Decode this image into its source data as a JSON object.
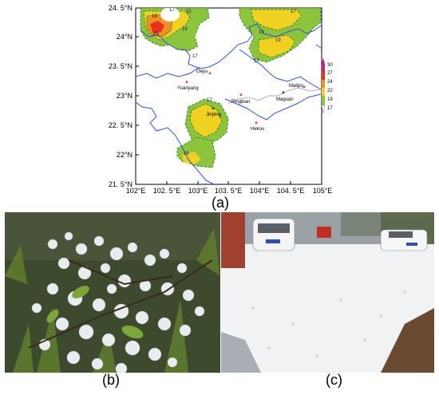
{
  "map": {
    "x_ticks": [
      "102°E",
      "102. 5°E",
      "103°E",
      "103. 5°E",
      "104°E",
      "104. 5°E",
      "105°E"
    ],
    "y_ticks": [
      "24. 5°N",
      "24°N",
      "23. 5°N",
      "23°N",
      "22. 5°N",
      "22°N",
      "21. 5°N"
    ],
    "cities": [
      {
        "name": "Gejiu"
      },
      {
        "name": "Yuanyang"
      },
      {
        "name": "Pingbian"
      },
      {
        "name": "Maguan"
      },
      {
        "name": "Malipo"
      },
      {
        "name": "Jinping"
      },
      {
        "name": "Hekou"
      }
    ],
    "contour_labels": [
      "19",
      "22",
      "17",
      "23",
      "19",
      "17",
      "19",
      "17",
      "19",
      "17"
    ],
    "colorbar": {
      "levels": [
        "30",
        "27",
        "24",
        "22",
        "19",
        "17"
      ],
      "colors": [
        "#c81e8c",
        "#e8301e",
        "#f09020",
        "#f0d020",
        "#8cc43c",
        "#ffffff"
      ]
    },
    "caption": "(a)"
  },
  "photos": {
    "b_caption": "(b)",
    "c_caption": "(c)"
  }
}
